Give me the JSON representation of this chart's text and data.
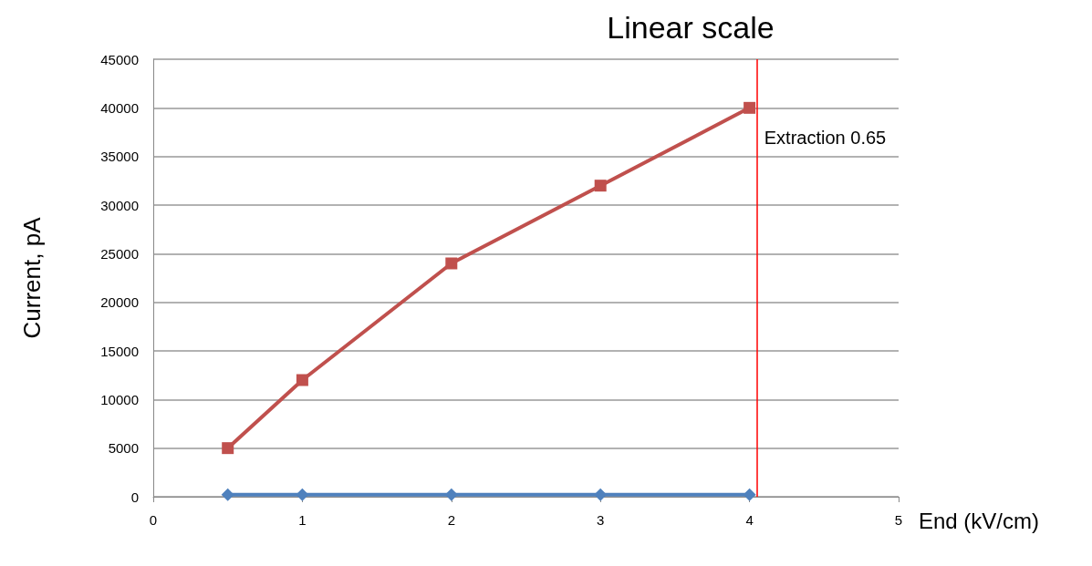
{
  "chart_data": {
    "type": "line",
    "title": "Linear scale",
    "xlabel": "End (kV/cm)",
    "ylabel": "Current, pA",
    "x": [
      0.5,
      1,
      2,
      3,
      4
    ],
    "series": [
      {
        "color": "#4f81bd",
        "marker": "diamond",
        "values": [
          200,
          200,
          200,
          200,
          200
        ]
      },
      {
        "color": "#c0504d",
        "marker": "square",
        "values": [
          5000,
          12000,
          24000,
          32000,
          40000
        ]
      }
    ],
    "xlim": [
      0,
      5
    ],
    "xticks": [
      0,
      1,
      2,
      3,
      4,
      5
    ],
    "ylim": [
      0,
      45000
    ],
    "yticks": [
      0,
      5000,
      10000,
      15000,
      20000,
      25000,
      30000,
      35000,
      40000,
      45000
    ],
    "grid": "y",
    "line_style": "solid",
    "ref_lines": [
      {
        "axis": "x",
        "value": 4.05,
        "label": "Extraction 0.65",
        "color": "#ff0000"
      }
    ]
  }
}
